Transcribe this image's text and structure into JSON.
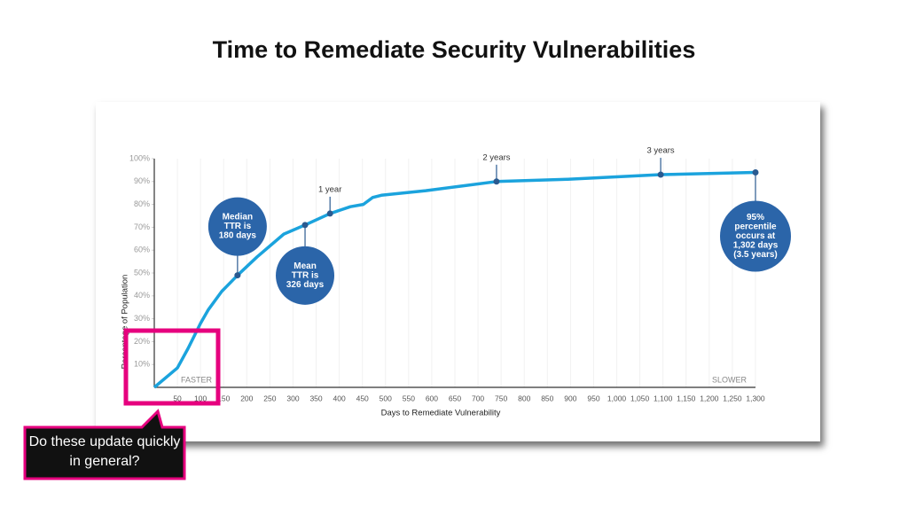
{
  "slide_title": "Time to Remediate Security Vulnerabilities",
  "callout": "Do these update quickly in general?",
  "chart_data": {
    "type": "line",
    "x_label": "Days to Remediate Vulnerability",
    "y_label": "Percentage of Population",
    "left_note": "FASTER",
    "right_note": "SLOWER",
    "xlim": [
      0,
      1300
    ],
    "ylim": [
      0,
      100
    ],
    "xticks": [
      50,
      100,
      150,
      200,
      250,
      300,
      350,
      400,
      450,
      500,
      550,
      600,
      650,
      700,
      750,
      800,
      850,
      900,
      950,
      {
        "value": 1000,
        "label": "1,000"
      },
      {
        "value": 1050,
        "label": "1,050"
      },
      {
        "value": 1100,
        "label": "1,100"
      },
      {
        "value": 1150,
        "label": "1,150"
      },
      {
        "value": 1200,
        "label": "1,200"
      },
      {
        "value": 1250,
        "label": "1,250"
      },
      {
        "value": 1300,
        "label": "1,300"
      }
    ],
    "yticks": [
      {
        "value": 10,
        "label": "10%"
      },
      {
        "value": 20,
        "label": "20%"
      },
      {
        "value": 30,
        "label": "30%"
      },
      {
        "value": 40,
        "label": "40%"
      },
      {
        "value": 50,
        "label": "50%"
      },
      {
        "value": 60,
        "label": "60%"
      },
      {
        "value": 70,
        "label": "70%"
      },
      {
        "value": 80,
        "label": "80%"
      },
      {
        "value": 90,
        "label": "90%"
      },
      {
        "value": 100,
        "label": "100%"
      }
    ],
    "grid": true,
    "series": [
      {
        "color": "#1ba3dd",
        "x": [
          0,
          50,
          73,
          100,
          117,
          146,
          180,
          222,
          280,
          326,
          380,
          424,
          452,
          472,
          491,
          587,
          663,
          740,
          894,
          1095,
          1300
        ],
        "values": [
          0,
          8.5,
          17,
          28,
          34,
          42,
          49,
          57,
          67,
          71,
          76,
          79,
          80,
          83,
          84,
          86,
          88,
          90,
          91,
          93,
          94
        ]
      }
    ],
    "annotations": [
      {
        "x": 180,
        "y": 49,
        "style": "bubble",
        "text": [
          "Median",
          "TTR is",
          "180 days"
        ]
      },
      {
        "x": 326,
        "y": 71,
        "style": "bubble",
        "text": [
          "Mean",
          "TTR is",
          "326 days"
        ]
      },
      {
        "x": 380,
        "y": 76,
        "style": "label",
        "text": [
          "1 year"
        ]
      },
      {
        "x": 740,
        "y": 90,
        "style": "label",
        "text": [
          "2 years"
        ]
      },
      {
        "x": 1095,
        "y": 93,
        "style": "label",
        "text": [
          "3 years"
        ]
      },
      {
        "x": 1300,
        "y": 94,
        "style": "bubble",
        "text": [
          "95%",
          "percentile",
          "occurs at",
          "1,302 days",
          "(3.5 years)"
        ]
      }
    ]
  }
}
